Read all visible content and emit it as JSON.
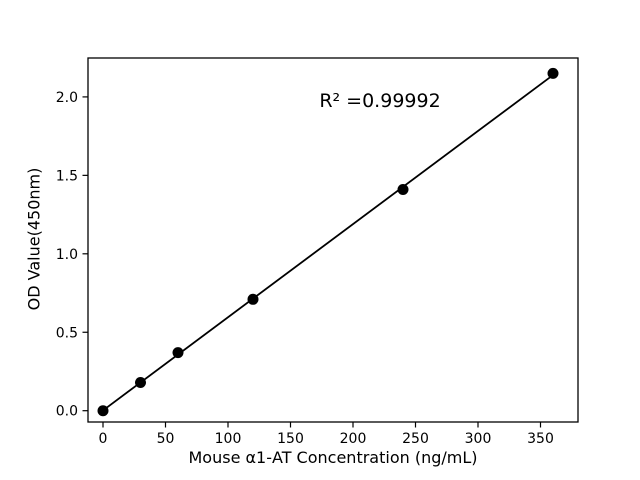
{
  "figure": {
    "background": "#ffffff",
    "foreground": "#000000"
  },
  "chart_data": {
    "type": "scatter",
    "title": "",
    "xlabel": "Mouse α1-AT Concentration (ng/mL)",
    "ylabel": "OD Value(450nm)",
    "annotation": "R² =0.99992",
    "r_squared": 0.99992,
    "x": [
      0,
      30,
      60,
      120,
      240,
      360
    ],
    "y": [
      0.0,
      0.18,
      0.37,
      0.71,
      1.41,
      2.15
    ],
    "fit_line": true,
    "xlim": [
      -12,
      380
    ],
    "ylim": [
      -0.072,
      2.248
    ],
    "x_ticks": [
      0,
      50,
      100,
      150,
      200,
      250,
      300,
      350
    ],
    "x_tick_labels": [
      "0",
      "50",
      "100",
      "150",
      "200",
      "250",
      "300",
      "350"
    ],
    "y_ticks": [
      0.0,
      0.5,
      1.0,
      1.5,
      2.0
    ],
    "y_tick_labels": [
      "0.0",
      "0.5",
      "1.0",
      "1.5",
      "2.0"
    ],
    "grid": false,
    "legend": null,
    "line_color": "#000000",
    "marker_color": "#000000"
  }
}
